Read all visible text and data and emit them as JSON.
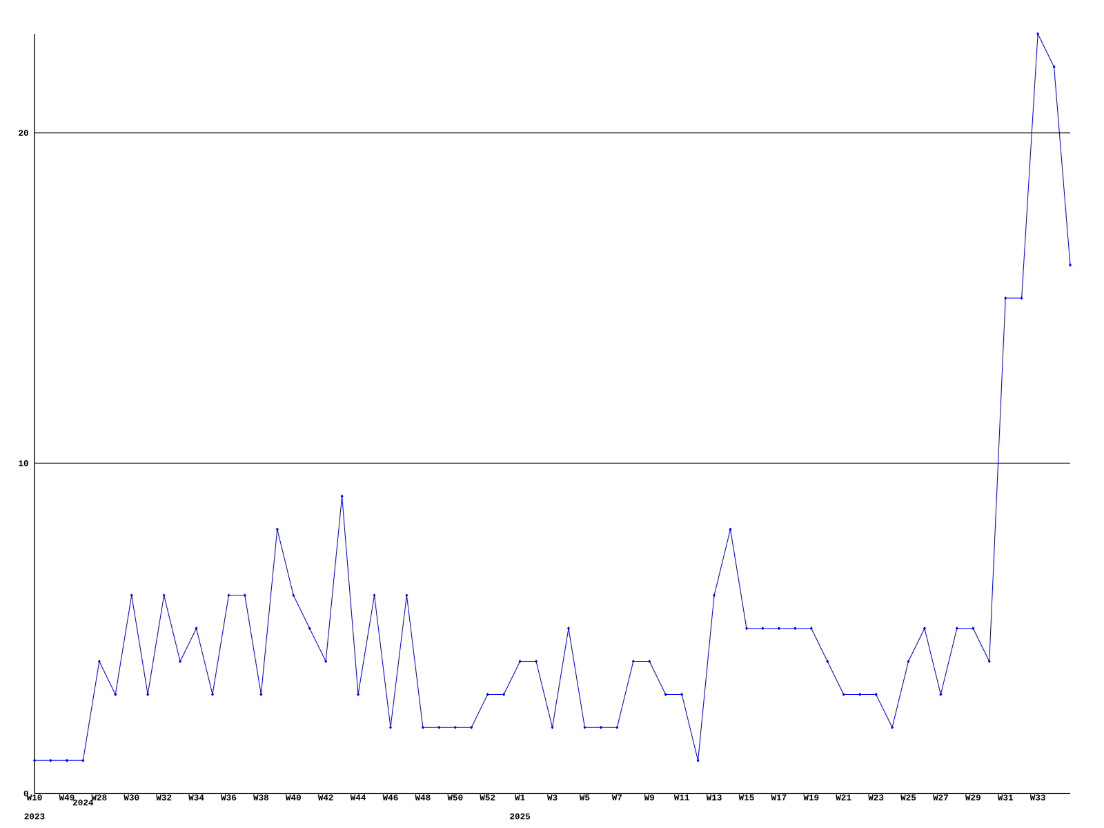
{
  "chart_data": {
    "type": "line",
    "categories": [
      "W10",
      null,
      "W49",
      "2024",
      "W28",
      null,
      "W30",
      null,
      "W32",
      null,
      "W34",
      null,
      "W36",
      null,
      "W38",
      null,
      "W40",
      null,
      "W42",
      null,
      "W44",
      null,
      "W46",
      null,
      "W48",
      null,
      "W50",
      null,
      "W52",
      null,
      "W1",
      null,
      "W3",
      null,
      "W5",
      null,
      "W7",
      null,
      "W9",
      null,
      "W11",
      null,
      "W13",
      null,
      "W15",
      null,
      "W17",
      null,
      "W19",
      null,
      "W21",
      null,
      "W23",
      null,
      "W25",
      null,
      "W27",
      null,
      "W29",
      null,
      "W31",
      null,
      "W33",
      null,
      null
    ],
    "values": [
      1,
      1,
      1,
      1,
      4,
      3,
      6,
      3,
      6,
      4,
      5,
      3,
      6,
      6,
      3,
      8,
      6,
      5,
      4,
      9,
      3,
      6,
      2,
      6,
      2,
      2,
      2,
      2,
      3,
      3,
      4,
      4,
      2,
      5,
      2,
      2,
      2,
      4,
      4,
      3,
      3,
      1,
      6,
      8,
      5,
      5,
      5,
      5,
      5,
      4,
      3,
      3,
      3,
      2,
      4,
      5,
      3,
      5,
      5,
      4,
      15,
      15,
      23,
      22,
      16
    ],
    "color": "#0000ff",
    "ylim": [
      0,
      23
    ],
    "yticks": [
      0,
      10,
      20
    ],
    "grid": "y",
    "marker": "diamond",
    "line_style": "solid",
    "annotations": [
      "2023",
      "2025"
    ]
  }
}
